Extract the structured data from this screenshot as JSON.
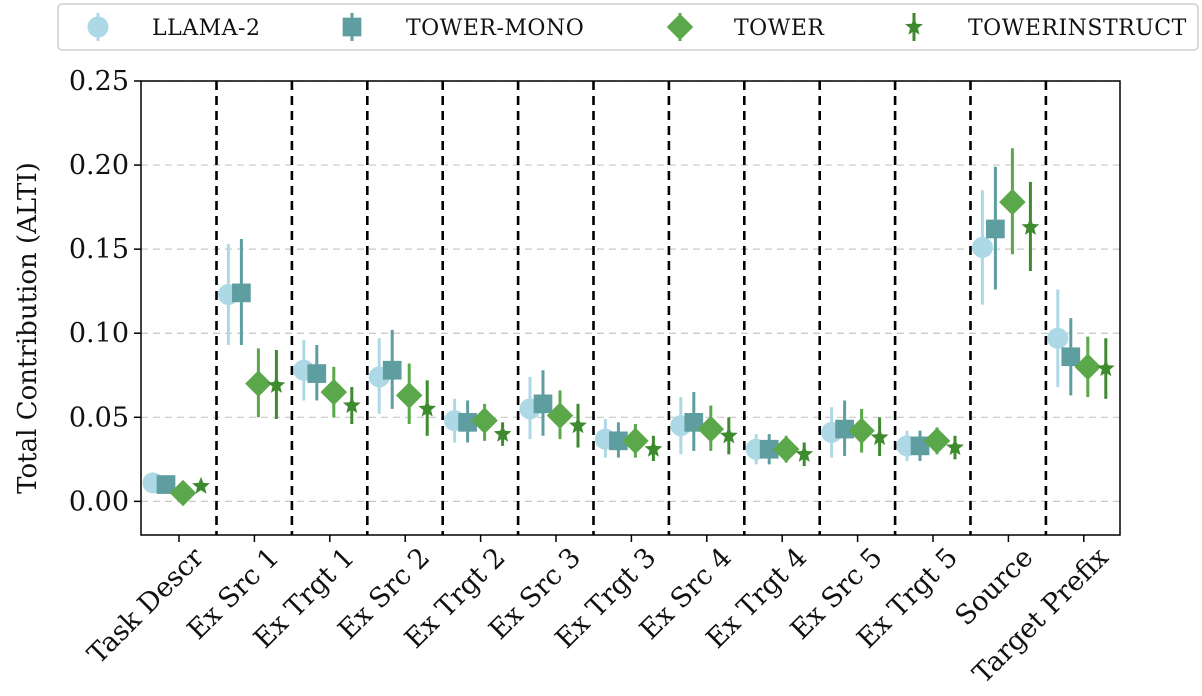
{
  "chart_data": {
    "type": "scatter",
    "ylabel": "Total Contribution (ALTI)",
    "xlabel": "",
    "title": "",
    "ylim": [
      -0.02,
      0.25
    ],
    "yticks": [
      "0.00",
      "0.05",
      "0.10",
      "0.15",
      "0.20",
      "0.25"
    ],
    "grid": "horizontal dashed",
    "legend_position": "top",
    "categories": [
      "Task Descr",
      "Ex Src 1",
      "Ex Trgt 1",
      "Ex Src 2",
      "Ex Trgt 2",
      "Ex Src 3",
      "Ex Trgt 3",
      "Ex Src 4",
      "Ex Trgt 4",
      "Ex Src 5",
      "Ex Trgt 5",
      "Source",
      "Target Prefix"
    ],
    "series": [
      {
        "name": "LLAMA-2",
        "marker": "circle",
        "color": "#add8e6",
        "values": [
          0.011,
          0.123,
          0.078,
          0.074,
          0.048,
          0.055,
          0.037,
          0.045,
          0.031,
          0.041,
          0.033,
          0.151,
          0.097
        ],
        "err_low": [
          0.009,
          0.093,
          0.06,
          0.052,
          0.035,
          0.037,
          0.026,
          0.028,
          0.022,
          0.026,
          0.024,
          0.117,
          0.068
        ],
        "err_high": [
          0.013,
          0.153,
          0.096,
          0.097,
          0.061,
          0.074,
          0.049,
          0.062,
          0.04,
          0.056,
          0.042,
          0.185,
          0.126
        ]
      },
      {
        "name": "TOWER-MONO",
        "marker": "square",
        "color": "#5f9ea0",
        "values": [
          0.01,
          0.124,
          0.076,
          0.078,
          0.047,
          0.058,
          0.036,
          0.047,
          0.031,
          0.043,
          0.033,
          0.162,
          0.086
        ],
        "err_low": [
          0.008,
          0.093,
          0.06,
          0.055,
          0.035,
          0.039,
          0.026,
          0.03,
          0.022,
          0.027,
          0.024,
          0.126,
          0.063
        ],
        "err_high": [
          0.012,
          0.156,
          0.093,
          0.102,
          0.06,
          0.078,
          0.047,
          0.065,
          0.04,
          0.06,
          0.042,
          0.199,
          0.109
        ]
      },
      {
        "name": "TOWER",
        "marker": "diamond",
        "color": "#5aa84a",
        "values": [
          0.005,
          0.07,
          0.065,
          0.063,
          0.048,
          0.051,
          0.036,
          0.043,
          0.031,
          0.042,
          0.036,
          0.178,
          0.08
        ],
        "err_low": [
          0.003,
          0.05,
          0.05,
          0.046,
          0.036,
          0.037,
          0.026,
          0.03,
          0.023,
          0.029,
          0.028,
          0.147,
          0.062
        ],
        "err_high": [
          0.007,
          0.091,
          0.08,
          0.082,
          0.058,
          0.066,
          0.046,
          0.057,
          0.039,
          0.055,
          0.044,
          0.21,
          0.098
        ]
      },
      {
        "name": "TOWERINSTRUCT",
        "marker": "star",
        "color": "#3e8a2e",
        "values": [
          0.009,
          0.069,
          0.057,
          0.055,
          0.04,
          0.045,
          0.031,
          0.039,
          0.028,
          0.038,
          0.032,
          0.163,
          0.079
        ],
        "err_low": [
          0.007,
          0.049,
          0.046,
          0.039,
          0.033,
          0.032,
          0.024,
          0.028,
          0.021,
          0.027,
          0.025,
          0.137,
          0.061
        ],
        "err_high": [
          0.011,
          0.09,
          0.068,
          0.072,
          0.047,
          0.058,
          0.039,
          0.05,
          0.035,
          0.05,
          0.039,
          0.19,
          0.097
        ]
      }
    ]
  }
}
